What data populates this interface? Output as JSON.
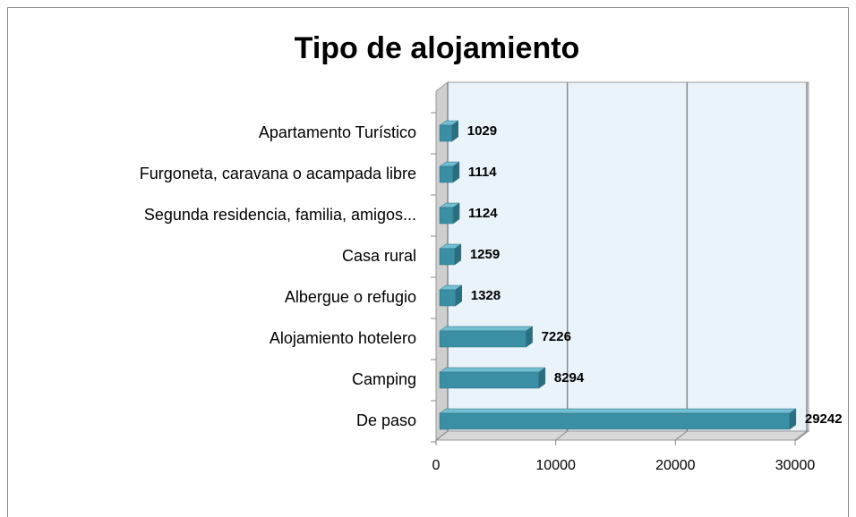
{
  "chart_data": {
    "type": "bar",
    "orientation": "horizontal",
    "title": "Tipo de alojamiento",
    "categories": [
      "Apartamento Turístico",
      "Furgoneta, caravana o acampada libre",
      "Segunda residencia, familia, amigos...",
      "Casa rural",
      "Albergue o refugio",
      "Alojamiento hotelero",
      "Camping",
      "De paso"
    ],
    "values": [
      1029,
      1114,
      1124,
      1259,
      1328,
      7226,
      8294,
      29242
    ],
    "color": "#3a8fa5",
    "xlim": [
      0,
      30000
    ],
    "xticks": [
      0,
      10000,
      20000,
      30000
    ],
    "grid": true
  }
}
